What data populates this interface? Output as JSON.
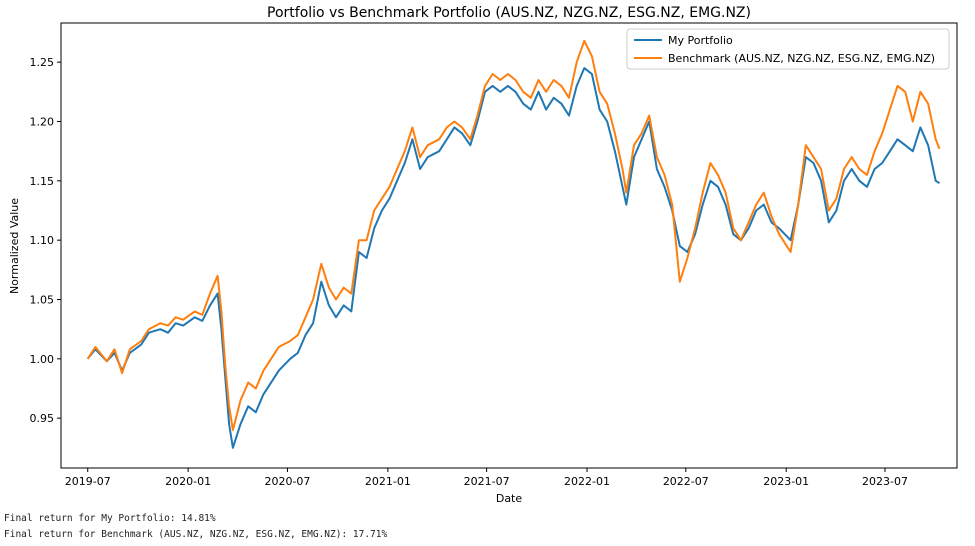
{
  "chart_data": {
    "type": "line",
    "title": "Portfolio vs Benchmark Portfolio (AUS.NZ, NZG.NZ, ESG.NZ, EMG.NZ)",
    "xlabel": "Date",
    "ylabel": "Normalized Value",
    "x_ticks": [
      "2019-07",
      "2020-01",
      "2020-07",
      "2021-01",
      "2021-07",
      "2022-01",
      "2022-07",
      "2023-01",
      "2023-07"
    ],
    "y_ticks": [
      "0.95",
      "1.00",
      "1.05",
      "1.10",
      "1.15",
      "1.20",
      "1.25"
    ],
    "xlim": [
      "2019-05-13",
      "2023-11-10"
    ],
    "ylim": [
      0.908,
      1.283
    ],
    "legend_position": "upper right",
    "grid": false,
    "series": [
      {
        "name": "My Portfolio",
        "color": "#1f77b4",
        "points": [
          [
            "2019-07-01",
            1.0
          ],
          [
            "2019-07-15",
            1.008
          ],
          [
            "2019-08-05",
            0.998
          ],
          [
            "2019-08-19",
            1.005
          ],
          [
            "2019-09-02",
            0.99
          ],
          [
            "2019-09-16",
            1.005
          ],
          [
            "2019-10-07",
            1.012
          ],
          [
            "2019-10-21",
            1.022
          ],
          [
            "2019-11-11",
            1.025
          ],
          [
            "2019-11-25",
            1.022
          ],
          [
            "2019-12-09",
            1.03
          ],
          [
            "2019-12-23",
            1.028
          ],
          [
            "2020-01-13",
            1.035
          ],
          [
            "2020-01-27",
            1.032
          ],
          [
            "2020-02-10",
            1.045
          ],
          [
            "2020-02-24",
            1.055
          ],
          [
            "2020-03-02",
            1.025
          ],
          [
            "2020-03-09",
            0.985
          ],
          [
            "2020-03-16",
            0.945
          ],
          [
            "2020-03-23",
            0.925
          ],
          [
            "2020-04-06",
            0.945
          ],
          [
            "2020-04-20",
            0.96
          ],
          [
            "2020-05-04",
            0.955
          ],
          [
            "2020-05-18",
            0.97
          ],
          [
            "2020-06-01",
            0.98
          ],
          [
            "2020-06-15",
            0.99
          ],
          [
            "2020-07-06",
            1.0
          ],
          [
            "2020-07-20",
            1.005
          ],
          [
            "2020-08-03",
            1.02
          ],
          [
            "2020-08-17",
            1.03
          ],
          [
            "2020-09-01",
            1.065
          ],
          [
            "2020-09-15",
            1.045
          ],
          [
            "2020-09-28",
            1.035
          ],
          [
            "2020-10-12",
            1.045
          ],
          [
            "2020-10-26",
            1.04
          ],
          [
            "2020-11-09",
            1.09
          ],
          [
            "2020-11-23",
            1.085
          ],
          [
            "2020-12-07",
            1.11
          ],
          [
            "2020-12-21",
            1.125
          ],
          [
            "2021-01-04",
            1.135
          ],
          [
            "2021-01-18",
            1.15
          ],
          [
            "2021-02-01",
            1.165
          ],
          [
            "2021-02-15",
            1.185
          ],
          [
            "2021-03-01",
            1.16
          ],
          [
            "2021-03-15",
            1.17
          ],
          [
            "2021-04-05",
            1.175
          ],
          [
            "2021-04-19",
            1.185
          ],
          [
            "2021-05-03",
            1.195
          ],
          [
            "2021-05-17",
            1.19
          ],
          [
            "2021-06-01",
            1.18
          ],
          [
            "2021-06-14",
            1.2
          ],
          [
            "2021-06-28",
            1.225
          ],
          [
            "2021-07-12",
            1.23
          ],
          [
            "2021-07-26",
            1.225
          ],
          [
            "2021-08-09",
            1.23
          ],
          [
            "2021-08-23",
            1.225
          ],
          [
            "2021-09-06",
            1.215
          ],
          [
            "2021-09-20",
            1.21
          ],
          [
            "2021-10-04",
            1.225
          ],
          [
            "2021-10-18",
            1.21
          ],
          [
            "2021-11-01",
            1.22
          ],
          [
            "2021-11-15",
            1.215
          ],
          [
            "2021-11-29",
            1.205
          ],
          [
            "2021-12-13",
            1.23
          ],
          [
            "2021-12-27",
            1.245
          ],
          [
            "2022-01-10",
            1.24
          ],
          [
            "2022-01-24",
            1.21
          ],
          [
            "2022-02-07",
            1.2
          ],
          [
            "2022-02-21",
            1.175
          ],
          [
            "2022-03-07",
            1.145
          ],
          [
            "2022-03-14",
            1.13
          ],
          [
            "2022-03-28",
            1.17
          ],
          [
            "2022-04-11",
            1.185
          ],
          [
            "2022-04-25",
            1.2
          ],
          [
            "2022-05-09",
            1.16
          ],
          [
            "2022-05-23",
            1.145
          ],
          [
            "2022-06-06",
            1.125
          ],
          [
            "2022-06-20",
            1.095
          ],
          [
            "2022-07-04",
            1.09
          ],
          [
            "2022-07-18",
            1.105
          ],
          [
            "2022-08-01",
            1.13
          ],
          [
            "2022-08-15",
            1.15
          ],
          [
            "2022-08-29",
            1.145
          ],
          [
            "2022-09-12",
            1.13
          ],
          [
            "2022-09-26",
            1.105
          ],
          [
            "2022-10-10",
            1.1
          ],
          [
            "2022-10-24",
            1.11
          ],
          [
            "2022-11-07",
            1.125
          ],
          [
            "2022-11-21",
            1.13
          ],
          [
            "2022-12-05",
            1.115
          ],
          [
            "2022-12-19",
            1.11
          ],
          [
            "2023-01-09",
            1.1
          ],
          [
            "2023-01-23",
            1.13
          ],
          [
            "2023-02-06",
            1.17
          ],
          [
            "2023-02-20",
            1.165
          ],
          [
            "2023-03-06",
            1.15
          ],
          [
            "2023-03-20",
            1.115
          ],
          [
            "2023-04-03",
            1.125
          ],
          [
            "2023-04-17",
            1.15
          ],
          [
            "2023-05-01",
            1.16
          ],
          [
            "2023-05-15",
            1.15
          ],
          [
            "2023-05-29",
            1.145
          ],
          [
            "2023-06-12",
            1.16
          ],
          [
            "2023-06-26",
            1.165
          ],
          [
            "2023-07-10",
            1.175
          ],
          [
            "2023-07-24",
            1.185
          ],
          [
            "2023-08-07",
            1.18
          ],
          [
            "2023-08-21",
            1.175
          ],
          [
            "2023-09-04",
            1.195
          ],
          [
            "2023-09-18",
            1.18
          ],
          [
            "2023-10-02",
            1.15
          ],
          [
            "2023-10-09",
            1.148
          ]
        ]
      },
      {
        "name": "Benchmark (AUS.NZ, NZG.NZ, ESG.NZ, EMG.NZ)",
        "color": "#ff7f0e",
        "points": [
          [
            "2019-07-01",
            1.0
          ],
          [
            "2019-07-15",
            1.01
          ],
          [
            "2019-08-05",
            0.998
          ],
          [
            "2019-08-19",
            1.008
          ],
          [
            "2019-09-02",
            0.988
          ],
          [
            "2019-09-16",
            1.008
          ],
          [
            "2019-10-07",
            1.015
          ],
          [
            "2019-10-21",
            1.025
          ],
          [
            "2019-11-11",
            1.03
          ],
          [
            "2019-11-25",
            1.028
          ],
          [
            "2019-12-09",
            1.035
          ],
          [
            "2019-12-23",
            1.033
          ],
          [
            "2020-01-13",
            1.04
          ],
          [
            "2020-01-27",
            1.037
          ],
          [
            "2020-02-10",
            1.055
          ],
          [
            "2020-02-24",
            1.07
          ],
          [
            "2020-03-02",
            1.04
          ],
          [
            "2020-03-09",
            0.995
          ],
          [
            "2020-03-16",
            0.96
          ],
          [
            "2020-03-23",
            0.94
          ],
          [
            "2020-04-06",
            0.965
          ],
          [
            "2020-04-20",
            0.98
          ],
          [
            "2020-05-04",
            0.975
          ],
          [
            "2020-05-18",
            0.99
          ],
          [
            "2020-06-01",
            1.0
          ],
          [
            "2020-06-15",
            1.01
          ],
          [
            "2020-07-06",
            1.015
          ],
          [
            "2020-07-20",
            1.02
          ],
          [
            "2020-08-03",
            1.035
          ],
          [
            "2020-08-17",
            1.05
          ],
          [
            "2020-09-01",
            1.08
          ],
          [
            "2020-09-15",
            1.06
          ],
          [
            "2020-09-28",
            1.05
          ],
          [
            "2020-10-12",
            1.06
          ],
          [
            "2020-10-26",
            1.055
          ],
          [
            "2020-11-09",
            1.1
          ],
          [
            "2020-11-23",
            1.1
          ],
          [
            "2020-12-07",
            1.125
          ],
          [
            "2020-12-21",
            1.135
          ],
          [
            "2021-01-04",
            1.145
          ],
          [
            "2021-01-18",
            1.16
          ],
          [
            "2021-02-01",
            1.175
          ],
          [
            "2021-02-15",
            1.195
          ],
          [
            "2021-03-01",
            1.17
          ],
          [
            "2021-03-15",
            1.18
          ],
          [
            "2021-04-05",
            1.185
          ],
          [
            "2021-04-19",
            1.195
          ],
          [
            "2021-05-03",
            1.2
          ],
          [
            "2021-05-17",
            1.195
          ],
          [
            "2021-06-01",
            1.185
          ],
          [
            "2021-06-14",
            1.205
          ],
          [
            "2021-06-28",
            1.23
          ],
          [
            "2021-07-12",
            1.24
          ],
          [
            "2021-07-26",
            1.235
          ],
          [
            "2021-08-09",
            1.24
          ],
          [
            "2021-08-23",
            1.235
          ],
          [
            "2021-09-06",
            1.225
          ],
          [
            "2021-09-20",
            1.22
          ],
          [
            "2021-10-04",
            1.235
          ],
          [
            "2021-10-18",
            1.225
          ],
          [
            "2021-11-01",
            1.235
          ],
          [
            "2021-11-15",
            1.23
          ],
          [
            "2021-11-29",
            1.22
          ],
          [
            "2021-12-13",
            1.25
          ],
          [
            "2021-12-27",
            1.268
          ],
          [
            "2022-01-10",
            1.255
          ],
          [
            "2022-01-24",
            1.225
          ],
          [
            "2022-02-07",
            1.215
          ],
          [
            "2022-02-21",
            1.19
          ],
          [
            "2022-03-07",
            1.16
          ],
          [
            "2022-03-14",
            1.14
          ],
          [
            "2022-03-28",
            1.18
          ],
          [
            "2022-04-11",
            1.19
          ],
          [
            "2022-04-25",
            1.205
          ],
          [
            "2022-05-09",
            1.17
          ],
          [
            "2022-05-23",
            1.155
          ],
          [
            "2022-06-06",
            1.13
          ],
          [
            "2022-06-20",
            1.065
          ],
          [
            "2022-07-04",
            1.085
          ],
          [
            "2022-07-18",
            1.11
          ],
          [
            "2022-08-01",
            1.14
          ],
          [
            "2022-08-15",
            1.165
          ],
          [
            "2022-08-29",
            1.155
          ],
          [
            "2022-09-12",
            1.14
          ],
          [
            "2022-09-26",
            1.11
          ],
          [
            "2022-10-10",
            1.1
          ],
          [
            "2022-10-24",
            1.115
          ],
          [
            "2022-11-07",
            1.13
          ],
          [
            "2022-11-21",
            1.14
          ],
          [
            "2022-12-05",
            1.12
          ],
          [
            "2022-12-19",
            1.105
          ],
          [
            "2023-01-09",
            1.09
          ],
          [
            "2023-01-23",
            1.13
          ],
          [
            "2023-02-06",
            1.18
          ],
          [
            "2023-02-20",
            1.17
          ],
          [
            "2023-03-06",
            1.16
          ],
          [
            "2023-03-20",
            1.125
          ],
          [
            "2023-04-03",
            1.135
          ],
          [
            "2023-04-17",
            1.16
          ],
          [
            "2023-05-01",
            1.17
          ],
          [
            "2023-05-15",
            1.16
          ],
          [
            "2023-05-29",
            1.155
          ],
          [
            "2023-06-12",
            1.175
          ],
          [
            "2023-06-26",
            1.19
          ],
          [
            "2023-07-10",
            1.21
          ],
          [
            "2023-07-24",
            1.23
          ],
          [
            "2023-08-07",
            1.225
          ],
          [
            "2023-08-21",
            1.2
          ],
          [
            "2023-09-04",
            1.225
          ],
          [
            "2023-09-18",
            1.215
          ],
          [
            "2023-10-02",
            1.185
          ],
          [
            "2023-10-09",
            1.177
          ]
        ]
      }
    ]
  },
  "output": {
    "line1": "Final return for My Portfolio: 14.81%",
    "line2": "Final return for Benchmark (AUS.NZ, NZG.NZ, ESG.NZ, EMG.NZ): 17.71%"
  }
}
